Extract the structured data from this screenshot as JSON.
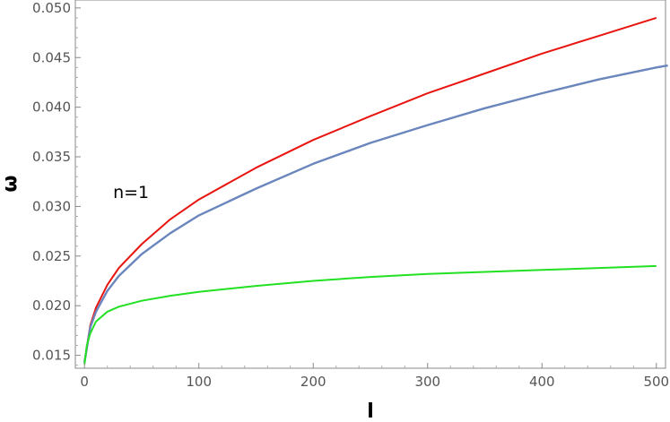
{
  "chart_data": {
    "type": "line",
    "title": "",
    "xlabel": "l",
    "ylabel": "ω",
    "xlim": [
      -8,
      508
    ],
    "ylim": [
      0.0137,
      0.0508
    ],
    "grid": false,
    "x_ticks": [
      0,
      100,
      200,
      300,
      400,
      500
    ],
    "x_tick_labels": [
      "0",
      "100",
      "200",
      "300",
      "400",
      "500"
    ],
    "y_ticks": [
      0.015,
      0.02,
      0.025,
      0.03,
      0.035,
      0.04,
      0.045,
      0.05
    ],
    "y_tick_labels": [
      "0.015",
      "0.020",
      "0.025",
      "0.030",
      "0.035",
      "0.040",
      "0.045",
      "0.050"
    ],
    "annotation": {
      "text": "n=1",
      "x": 25,
      "y": 0.0315
    },
    "series": [
      {
        "color": "#e8140f",
        "x": [
          0,
          5,
          10,
          20,
          30,
          50,
          75,
          100,
          150,
          200,
          250,
          300,
          350,
          400,
          450,
          500
        ],
        "y": [
          0.0143,
          0.018,
          0.0198,
          0.0221,
          0.0238,
          0.0262,
          0.0287,
          0.0307,
          0.0339,
          0.0367,
          0.0391,
          0.0414,
          0.0434,
          0.0454,
          0.0472,
          0.049
        ]
      },
      {
        "color": "#6a86bd",
        "x": [
          0,
          5,
          10,
          20,
          30,
          50,
          75,
          100,
          150,
          200,
          250,
          300,
          350,
          400,
          450,
          500,
          510
        ],
        "y": [
          0.0143,
          0.0178,
          0.0194,
          0.0215,
          0.023,
          0.0252,
          0.0273,
          0.0291,
          0.0318,
          0.0343,
          0.0364,
          0.0382,
          0.0399,
          0.0414,
          0.0428,
          0.044,
          0.0442
        ]
      },
      {
        "color": "#22e022",
        "x": [
          0,
          2,
          5,
          10,
          20,
          30,
          50,
          75,
          100,
          150,
          200,
          250,
          300,
          350,
          400,
          450,
          500
        ],
        "y": [
          0.0141,
          0.016,
          0.0172,
          0.0184,
          0.0194,
          0.0199,
          0.0205,
          0.021,
          0.0214,
          0.022,
          0.0225,
          0.0229,
          0.0232,
          0.0234,
          0.0236,
          0.0238,
          0.024
        ]
      }
    ]
  }
}
